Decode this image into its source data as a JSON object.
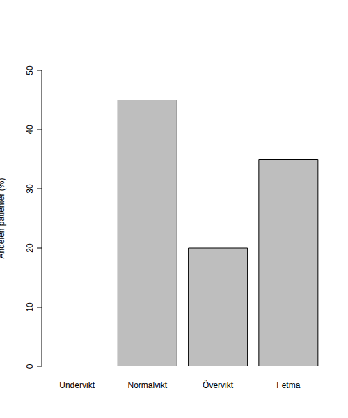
{
  "chart_data": {
    "type": "bar",
    "y_label": "Andelen patienter (%)",
    "categories": [
      "Undervikt",
      "Normalvikt",
      "Övervikt",
      "Fetma"
    ],
    "values": [
      0,
      45,
      20,
      35
    ],
    "color": "#bebebe",
    "ylim": [
      0,
      50
    ],
    "yticks": [
      0,
      10,
      20,
      30,
      40,
      50
    ],
    "grid": false
  }
}
